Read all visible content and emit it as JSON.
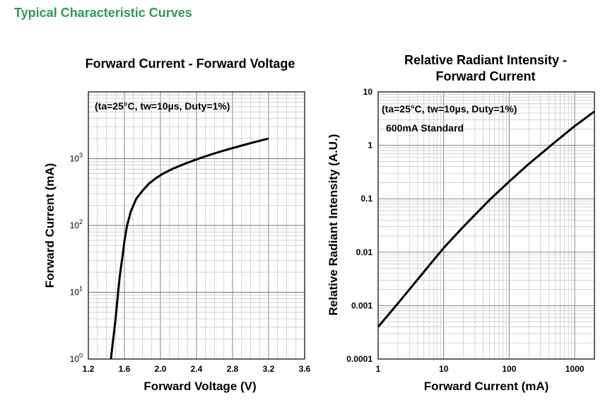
{
  "section_title": "Typical Characteristic Curves",
  "colors": {
    "title": "#2e9a5e",
    "curve": "#000000",
    "grid_major": "#777777",
    "grid_minor": "#bbbbbb"
  },
  "chart_data": [
    {
      "type": "line",
      "title": "Forward Current - Forward Voltage",
      "annotation": "(ta=25°C, tw=10µs, Duty=1%)",
      "xlabel": "Forward Voltage (V)",
      "ylabel": "Forward Current (mA)",
      "xlim": [
        1.2,
        3.6
      ],
      "ylim": [
        1,
        10000
      ],
      "yscale": "log",
      "grid": true,
      "xticks": [
        1.2,
        1.6,
        2.0,
        2.4,
        2.8,
        3.2,
        3.6
      ],
      "xtick_labels": [
        "1.2",
        "1.6",
        "2.0",
        "2.4",
        "2.8",
        "3.2",
        "3.6"
      ],
      "yticks": [
        {
          "value": 1,
          "base": "10",
          "exp": "0"
        },
        {
          "value": 10,
          "base": "10",
          "exp": "1"
        },
        {
          "value": 100,
          "base": "10",
          "exp": "2"
        },
        {
          "value": 1000,
          "base": "10",
          "exp": "3"
        }
      ],
      "series": [
        {
          "x": [
            1.45,
            1.47,
            1.5,
            1.53,
            1.55,
            1.58,
            1.6,
            1.63,
            1.67,
            1.73,
            1.8,
            1.87,
            1.95,
            2.03,
            2.15,
            2.3,
            2.45,
            2.6,
            2.75,
            2.9,
            3.05,
            3.2
          ],
          "y": [
            1,
            1.7,
            3.8,
            10,
            18,
            35,
            58,
            100,
            160,
            250,
            330,
            420,
            510,
            600,
            720,
            870,
            1030,
            1200,
            1380,
            1570,
            1780,
            2000
          ]
        }
      ]
    },
    {
      "type": "line",
      "title": "Relative Radiant Intensity - Forward Current",
      "annotation": "(ta=25°C, tw=10µs, Duty=1%)",
      "annotation2": "600mA Standard",
      "xlabel": "Forward Current (mA)",
      "ylabel": "Relative Radiant Intensity (A.U.)",
      "xlim": [
        1,
        2000
      ],
      "ylim": [
        0.0001,
        10
      ],
      "xscale": "log",
      "yscale": "log",
      "grid": true,
      "xticks": [
        1,
        10,
        100,
        1000
      ],
      "xtick_labels": [
        "1",
        "10",
        "100",
        "1000"
      ],
      "yticks": [
        0.0001,
        0.001,
        0.01,
        0.1,
        1,
        10
      ],
      "ytick_labels": [
        "0.0001",
        "0.001",
        "0.01",
        "0.1",
        "1",
        "10"
      ],
      "series": [
        {
          "x": [
            1,
            2,
            3,
            5,
            10,
            20,
            50,
            100,
            200,
            500,
            1000,
            2000
          ],
          "y": [
            0.0004,
            0.0011,
            0.002,
            0.0043,
            0.012,
            0.03,
            0.095,
            0.21,
            0.45,
            1.15,
            2.3,
            4.3
          ]
        }
      ]
    }
  ]
}
